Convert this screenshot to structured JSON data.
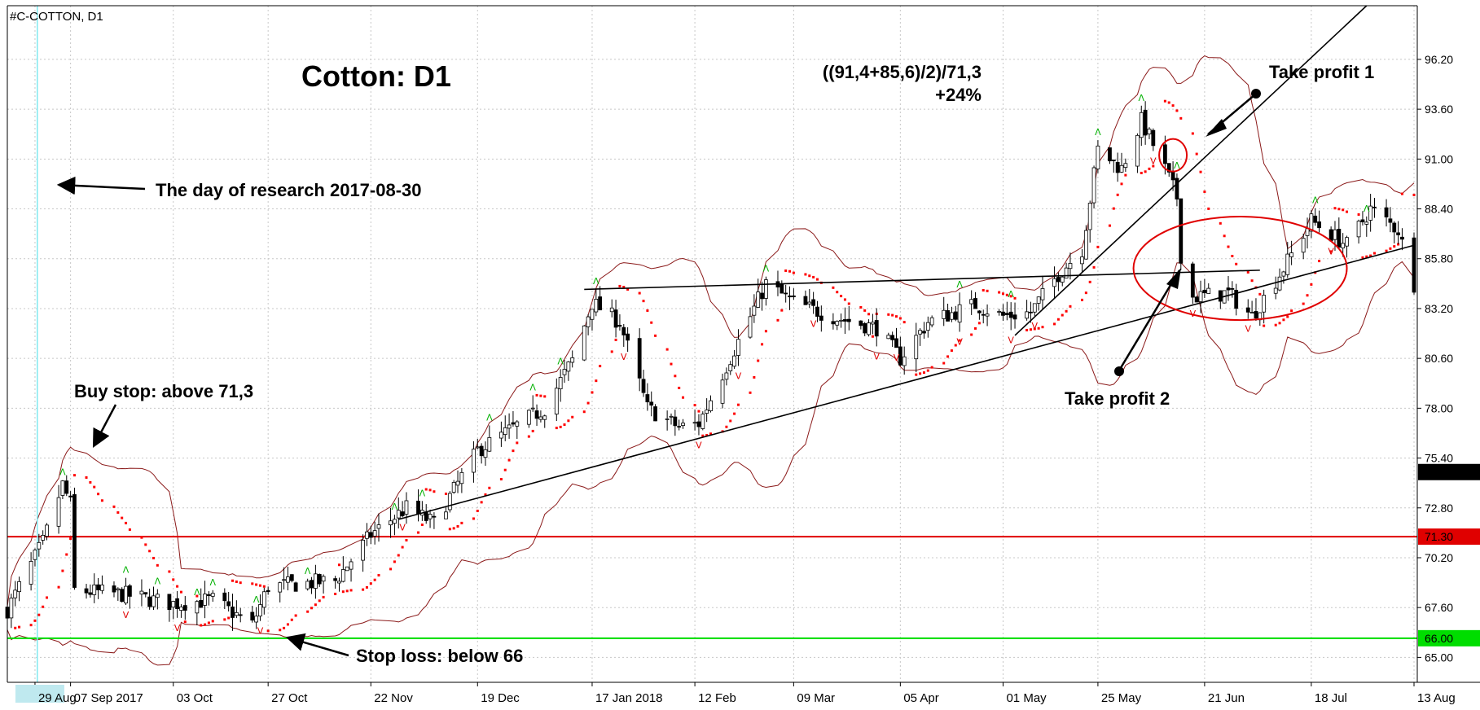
{
  "symbol_label": "#C-COTTON, D1",
  "title": "Cotton: D1",
  "formula_line1": "((91,4+85,6)/2)/71,3",
  "formula_line2": "+24%",
  "annotations": {
    "research_day": "The day of research 2017-08-30",
    "buy_stop": "Buy stop: above 71,3",
    "stop_loss": "Stop loss: below 66",
    "take_profit_1": "Take profit 1",
    "take_profit_2": "Take profit 2"
  },
  "chart_data": {
    "type": "candlestick",
    "y_range": [
      63.7,
      99.0
    ],
    "y_ticks": [
      96.2,
      93.6,
      91.0,
      88.4,
      85.8,
      83.2,
      80.6,
      78.0,
      75.4,
      72.8,
      70.2,
      67.6,
      65.0
    ],
    "x_range": [
      "2017-08-22",
      "2018-08-13"
    ],
    "x_ticks": [
      {
        "date": "2017-08-29",
        "label": "29 Aug",
        "highlight": true
      },
      {
        "date": "2017-09-07",
        "label": "07 Sep 2017"
      },
      {
        "date": "2017-10-03",
        "label": "03 Oct"
      },
      {
        "date": "2017-10-27",
        "label": "27 Oct"
      },
      {
        "date": "2017-11-22",
        "label": "22 Nov"
      },
      {
        "date": "2017-12-19",
        "label": "19 Dec"
      },
      {
        "date": "2018-01-17",
        "label": "17 Jan 2018"
      },
      {
        "date": "2018-02-12",
        "label": "12 Feb"
      },
      {
        "date": "2018-03-09",
        "label": "09 Mar"
      },
      {
        "date": "2018-04-05",
        "label": "05 Apr"
      },
      {
        "date": "2018-05-01",
        "label": "01 May"
      },
      {
        "date": "2018-05-25",
        "label": "25 May"
      },
      {
        "date": "2018-06-21",
        "label": "21 Jun"
      },
      {
        "date": "2018-07-18",
        "label": "18 Jul"
      },
      {
        "date": "2018-08-13",
        "label": "13 Aug"
      }
    ],
    "research_date": "2017-08-30",
    "current_price": 74.67,
    "current_price_label": "74.67",
    "levels": [
      {
        "name": "buy-stop-level",
        "value": 71.3,
        "label": "71.30",
        "color": "#e00000"
      },
      {
        "name": "stop-loss-level",
        "value": 66.0,
        "label": "66.00",
        "color": "#00dd00"
      }
    ],
    "price_path": [
      [
        "2017-08-22",
        67.5
      ],
      [
        "2017-08-31",
        71.0
      ],
      [
        "2017-09-05",
        74.0
      ],
      [
        "2017-09-07",
        73.0
      ],
      [
        "2017-09-08",
        68.5
      ],
      [
        "2017-09-20",
        68.3
      ],
      [
        "2017-10-03",
        67.8
      ],
      [
        "2017-10-13",
        68.0
      ],
      [
        "2017-10-23",
        66.7
      ],
      [
        "2017-10-27",
        68.7
      ],
      [
        "2017-11-13",
        69.0
      ],
      [
        "2017-11-22",
        71.4
      ],
      [
        "2017-12-01",
        72.8
      ],
      [
        "2017-12-08",
        72.0
      ],
      [
        "2017-12-19",
        75.8
      ],
      [
        "2018-01-05",
        78.0
      ],
      [
        "2018-01-12",
        80.5
      ],
      [
        "2018-01-17",
        83.5
      ],
      [
        "2018-01-24",
        82.5
      ],
      [
        "2018-01-31",
        78.0
      ],
      [
        "2018-02-08",
        77.0
      ],
      [
        "2018-02-13",
        77.2
      ],
      [
        "2018-02-23",
        81.5
      ],
      [
        "2018-03-02",
        84.5
      ],
      [
        "2018-03-09",
        83.5
      ],
      [
        "2018-03-20",
        82.7
      ],
      [
        "2018-03-30",
        82.2
      ],
      [
        "2018-04-05",
        80.6
      ],
      [
        "2018-04-12",
        82.5
      ],
      [
        "2018-04-24",
        83.4
      ],
      [
        "2018-05-01",
        82.8
      ],
      [
        "2018-05-08",
        83.0
      ],
      [
        "2018-05-15",
        85.0
      ],
      [
        "2018-05-21",
        86.3
      ],
      [
        "2018-05-25",
        91.5
      ],
      [
        "2018-05-31",
        90.5
      ],
      [
        "2018-06-05",
        93.0
      ],
      [
        "2018-06-11",
        90.5
      ],
      [
        "2018-06-14",
        89.0
      ],
      [
        "2018-06-15",
        86.0
      ],
      [
        "2018-06-18",
        83.8
      ],
      [
        "2018-06-27",
        84.0
      ],
      [
        "2018-07-03",
        82.8
      ],
      [
        "2018-07-11",
        85.3
      ],
      [
        "2018-07-18",
        87.8
      ],
      [
        "2018-07-27",
        86.5
      ],
      [
        "2018-08-02",
        88.4
      ],
      [
        "2018-08-09",
        87.3
      ],
      [
        "2018-08-13",
        84.5
      ]
    ],
    "trend_lines": [
      {
        "from": [
          "2017-11-29",
          72.2
        ],
        "to": [
          "2018-08-13",
          86.5
        ]
      },
      {
        "from": [
          "2018-01-15",
          84.2
        ],
        "to": [
          "2018-07-05",
          85.2
        ]
      },
      {
        "from": [
          "2018-05-04",
          81.8
        ],
        "to": [
          "2018-08-01",
          99.0
        ]
      }
    ],
    "ellipses": [
      {
        "center": [
          "2018-06-13",
          91.2
        ],
        "rx_days": 3.5,
        "ry": 0.85
      },
      {
        "center": [
          "2018-06-30",
          85.3
        ],
        "rx_days": 27,
        "ry": 2.7
      }
    ],
    "up_fractals": [
      "2017-09-05",
      "2017-09-21",
      "2017-09-29",
      "2017-10-09",
      "2017-10-13",
      "2017-10-24",
      "2017-11-06",
      "2017-11-28",
      "2017-12-05",
      "2017-12-22",
      "2018-01-02",
      "2018-01-09",
      "2018-01-18",
      "2018-03-02",
      "2018-04-20",
      "2018-05-03",
      "2018-05-25",
      "2018-06-05",
      "2018-06-14",
      "2018-07-19",
      "2018-08-01"
    ],
    "down_fractals": [
      "2017-09-21",
      "2017-10-04",
      "2017-10-25",
      "2017-11-30",
      "2018-01-25",
      "2018-02-13",
      "2018-02-23",
      "2018-03-14",
      "2018-03-30",
      "2018-04-04",
      "2018-04-20",
      "2018-05-03",
      "2018-05-09",
      "2018-06-08",
      "2018-06-18",
      "2018-07-02",
      "2018-07-23"
    ]
  }
}
